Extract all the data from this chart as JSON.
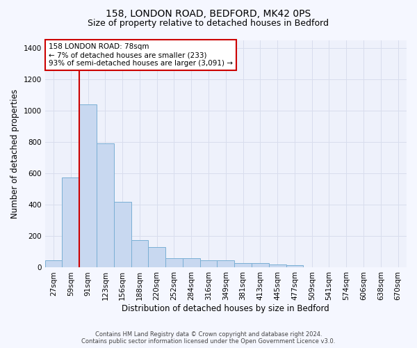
{
  "title_line1": "158, LONDON ROAD, BEDFORD, MK42 0PS",
  "title_line2": "Size of property relative to detached houses in Bedford",
  "xlabel": "Distribution of detached houses by size in Bedford",
  "ylabel": "Number of detached properties",
  "categories": [
    "27sqm",
    "59sqm",
    "91sqm",
    "123sqm",
    "156sqm",
    "188sqm",
    "220sqm",
    "252sqm",
    "284sqm",
    "316sqm",
    "349sqm",
    "381sqm",
    "413sqm",
    "445sqm",
    "477sqm",
    "509sqm",
    "541sqm",
    "574sqm",
    "606sqm",
    "638sqm",
    "670sqm"
  ],
  "bar_values": [
    45,
    575,
    1040,
    790,
    420,
    175,
    130,
    60,
    60,
    45,
    45,
    28,
    28,
    20,
    14,
    0,
    0,
    0,
    0,
    0,
    0
  ],
  "bar_fill_color": "#c8d8f0",
  "bar_edge_color": "#7aafd4",
  "ylim": [
    0,
    1450
  ],
  "yticks": [
    0,
    200,
    400,
    600,
    800,
    1000,
    1200,
    1400
  ],
  "vline_x": 1.5,
  "vline_color": "#cc0000",
  "annotation_text": "158 LONDON ROAD: 78sqm\n← 7% of detached houses are smaller (233)\n93% of semi-detached houses are larger (3,091) →",
  "annotation_box_edgecolor": "#cc0000",
  "annotation_box_facecolor": "#ffffff",
  "background_color": "#eef1fb",
  "grid_color": "#d8dded",
  "footer_text": "Contains HM Land Registry data © Crown copyright and database right 2024.\nContains public sector information licensed under the Open Government Licence v3.0.",
  "title_fontsize": 10,
  "subtitle_fontsize": 9,
  "axis_label_fontsize": 8.5,
  "tick_fontsize": 7.5,
  "annot_fontsize": 7.5
}
